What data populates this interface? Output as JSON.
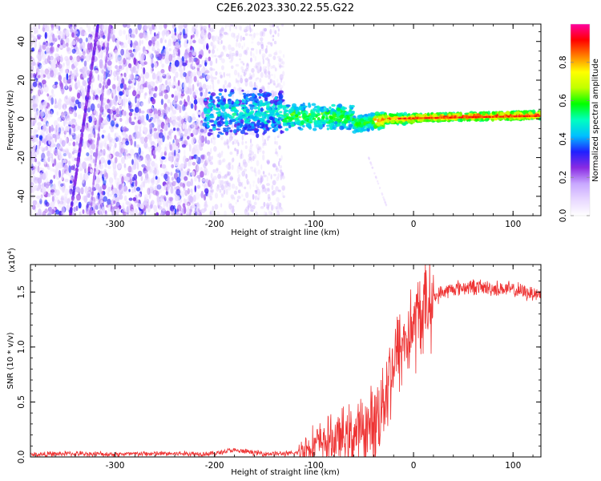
{
  "title": "C2E6.2023.330.22.55.G22",
  "chart_data": [
    {
      "type": "heatmap",
      "xlabel": "Height of straight line (km)",
      "ylabel": "Frequency (Hz)",
      "xlim": [
        -385,
        128
      ],
      "ylim": [
        -50,
        49
      ],
      "xticks": [
        -300,
        -200,
        -100,
        0,
        100
      ],
      "yticks": [
        -40,
        -20,
        0,
        20,
        40
      ],
      "colorbar": {
        "label": "Normalized spectral amplitude",
        "range": [
          0.0,
          1.0
        ],
        "ticks": [
          0.0,
          0.2,
          0.4,
          0.6,
          0.8
        ],
        "colormap": [
          "#ffffff",
          "#e8d8ff",
          "#c8a8ff",
          "#8a2be2",
          "#2020ff",
          "#00c0ff",
          "#00ffc0",
          "#00ff00",
          "#c0ff00",
          "#ffff00",
          "#ff8000",
          "#ff0000",
          "#ff00a0"
        ]
      }
    },
    {
      "type": "line",
      "xlabel": "Height of straight line (km)",
      "ylabel": "SNR (10 * v/v)",
      "yscale_note": "(x10",
      "yscale_exp": "4",
      "yscale_close": ")",
      "xlim": [
        -385,
        128
      ],
      "ylim": [
        0,
        1.75
      ],
      "xticks": [
        -300,
        -200,
        -100,
        0,
        100
      ],
      "yticks": [
        0.0,
        0.5,
        1.0,
        1.5
      ],
      "color": "#ee3333",
      "trend": {
        "x": [
          -385,
          -350,
          -300,
          -250,
          -200,
          -185,
          -170,
          -150,
          -120,
          -110,
          -100,
          -90,
          -80,
          -70,
          -60,
          -50,
          -40,
          -35,
          -30,
          -25,
          -20,
          -15,
          -10,
          -5,
          0,
          5,
          10,
          20,
          30,
          40,
          50,
          60,
          70,
          80,
          90,
          100,
          110,
          120,
          128
        ],
        "y": [
          0.02,
          0.03,
          0.025,
          0.03,
          0.03,
          0.06,
          0.05,
          0.03,
          0.03,
          0.07,
          0.12,
          0.14,
          0.16,
          0.18,
          0.2,
          0.24,
          0.3,
          0.4,
          0.55,
          0.72,
          0.85,
          0.95,
          1.05,
          1.1,
          1.2,
          1.26,
          1.35,
          1.45,
          1.5,
          1.53,
          1.54,
          1.55,
          1.54,
          1.53,
          1.53,
          1.52,
          1.5,
          1.49,
          1.48
        ]
      }
    }
  ]
}
